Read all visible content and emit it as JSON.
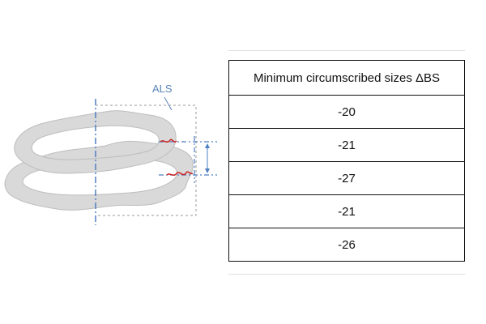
{
  "diagram": {
    "label": "ALS",
    "colors": {
      "ring_fill": "#d9d9d9",
      "ring_stroke": "#bdbdbd",
      "axis": "#4f7fc0",
      "dashed_box": "#9a9a9a",
      "deviation": "#cc2020"
    }
  },
  "table": {
    "header": "Minimum circumscribed sizes ΔBS",
    "rows": [
      "-20",
      "-21",
      "-27",
      "-21",
      "-26"
    ]
  }
}
